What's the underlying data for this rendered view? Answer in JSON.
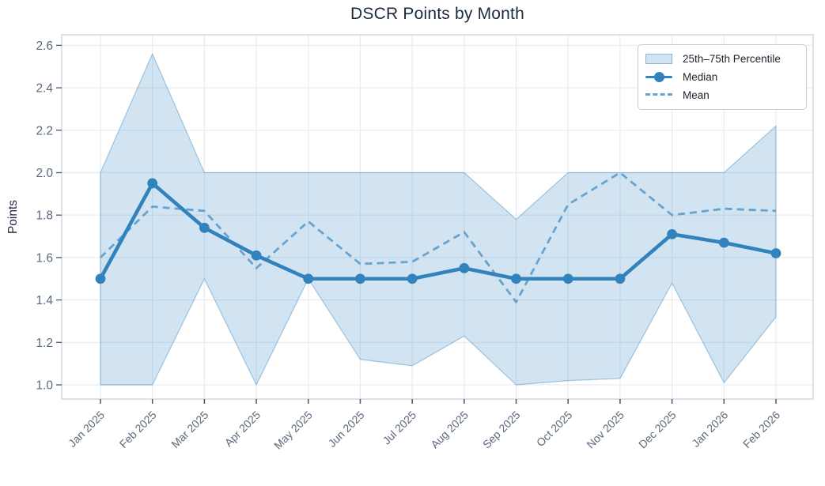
{
  "title": "DSCR Points by Month",
  "legend": {
    "percentile_label": "25th–75th Percentile",
    "median_label": "Median",
    "mean_label": "Mean"
  },
  "colors": {
    "median": "#3182bd",
    "mean": "#68a3cf",
    "band": "#3182bd",
    "grid": "#e8ecf2",
    "spine": "#c9d3de",
    "tick_label": "#5a6a7e",
    "tick_mark": "#4d5868",
    "text": "#1b2a3d",
    "legend_border": "#cccccc"
  },
  "chart_data": {
    "type": "line",
    "title": "DSCR Points by Month",
    "xlabel": "",
    "ylabel": "Points",
    "grid": true,
    "legend_position": "upper right",
    "ylim": [
      0.93,
      2.65
    ],
    "yticks": [
      1.0,
      1.2,
      1.4,
      1.6,
      1.8,
      2.0,
      2.2,
      2.4,
      2.6
    ],
    "categories": [
      "Jan 2025",
      "Feb 2025",
      "Mar 2025",
      "Apr 2025",
      "May 2025",
      "Jun 2025",
      "Jul 2025",
      "Aug 2025",
      "Sep 2025",
      "Oct 2025",
      "Nov 2025",
      "Dec 2025",
      "Jan 2026",
      "Feb 2026"
    ],
    "series": [
      {
        "name": "Median",
        "style": "solid-markers",
        "values": [
          1.5,
          1.95,
          1.74,
          1.61,
          1.5,
          1.5,
          1.5,
          1.55,
          1.5,
          1.5,
          1.5,
          1.71,
          1.67,
          1.62
        ]
      },
      {
        "name": "Mean",
        "style": "dashed",
        "values": [
          1.6,
          1.84,
          1.82,
          1.55,
          1.77,
          1.57,
          1.58,
          1.72,
          1.39,
          1.85,
          2.0,
          1.8,
          1.83,
          1.82
        ]
      }
    ],
    "band": {
      "label": "25th–75th Percentile",
      "lower": [
        1.0,
        1.0,
        1.5,
        1.0,
        1.5,
        1.12,
        1.09,
        1.23,
        1.0,
        1.02,
        1.03,
        1.48,
        1.01,
        1.32
      ],
      "upper": [
        2.0,
        2.56,
        2.0,
        2.0,
        2.0,
        2.0,
        2.0,
        2.0,
        1.78,
        2.0,
        2.0,
        2.0,
        2.0,
        2.22
      ]
    }
  }
}
